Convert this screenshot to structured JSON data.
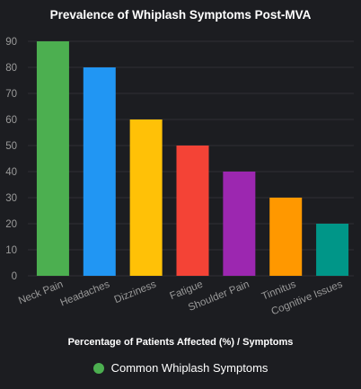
{
  "chart_data": {
    "type": "bar",
    "title": "Prevalence of Whiplash Symptoms Post-MVA",
    "xlabel": "Percentage of Patients Affected (%) / Symptoms",
    "ylabel": "",
    "categories": [
      "Neck Pain",
      "Headaches",
      "Dizziness",
      "Fatigue",
      "Shoulder Pain",
      "Tinnitus",
      "Cognitive Issues"
    ],
    "series": [
      {
        "name": "Common Whiplash Symptoms",
        "values": [
          90,
          80,
          60,
          50,
          40,
          30,
          20
        ],
        "colors": [
          "#4caf50",
          "#2196f3",
          "#ffc107",
          "#f44336",
          "#9c27b0",
          "#ff9800",
          "#009688"
        ]
      }
    ],
    "ylim": [
      0,
      90
    ],
    "yticks": [
      0,
      10,
      20,
      30,
      40,
      50,
      60,
      70,
      80,
      90
    ],
    "grid": true,
    "legend_position": "bottom"
  },
  "legend": {
    "label": "Common Whiplash Symptoms",
    "color": "#4caf50"
  },
  "colors": {
    "background": "#1c1d21",
    "grid": "#2f3035",
    "tick_text": "#9a9a9a",
    "title_text": "#ffffff"
  }
}
